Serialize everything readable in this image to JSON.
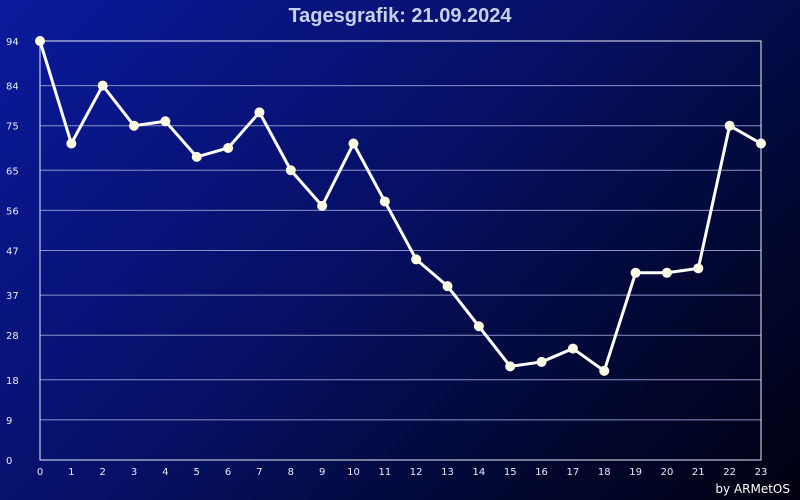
{
  "title": "Tagesgrafik: 21.09.2024",
  "credit": "by ARMetOS",
  "colors": {
    "line": "#ffffff",
    "marker": "#ffffe8",
    "grid": "#8a93c8",
    "frame": "#e8ecf8"
  },
  "chart_data": {
    "type": "line",
    "title": "Tagesgrafik: 21.09.2024",
    "xlabel": "",
    "ylabel": "",
    "x": [
      0,
      1,
      2,
      3,
      4,
      5,
      6,
      7,
      8,
      9,
      10,
      11,
      12,
      13,
      14,
      15,
      16,
      17,
      18,
      19,
      20,
      21,
      22,
      23
    ],
    "series": [
      {
        "values": [
          94,
          71,
          84,
          75,
          76,
          68,
          70,
          78,
          65,
          57,
          71,
          58,
          45,
          39,
          30,
          21,
          22,
          25,
          20,
          42,
          42,
          43,
          75,
          71
        ]
      }
    ],
    "y_ticks": [
      0,
      9,
      18,
      28,
      37,
      47,
      56,
      65,
      75,
      84,
      94
    ],
    "x_ticks": [
      0,
      1,
      2,
      3,
      4,
      5,
      6,
      7,
      8,
      9,
      10,
      11,
      12,
      13,
      14,
      15,
      16,
      17,
      18,
      19,
      20,
      21,
      22,
      23
    ],
    "ylim": [
      0,
      94
    ],
    "xlim": [
      0,
      23
    ],
    "grid": true
  }
}
